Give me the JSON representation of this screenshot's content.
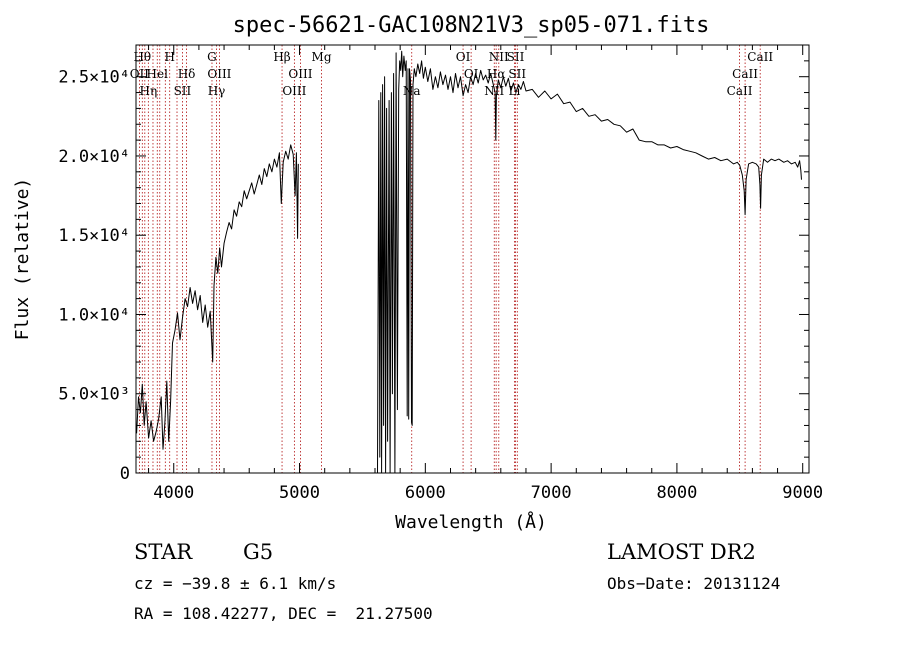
{
  "chart_data": {
    "type": "line",
    "title": "spec-56621-GAC108N21V3_sp05-071.fits",
    "xlabel": "Wavelength (Å)",
    "ylabel": "Flux (relative)",
    "xlim": [
      3700,
      9050
    ],
    "ylim": [
      0,
      27000
    ],
    "x_ticks": [
      4000,
      5000,
      6000,
      7000,
      8000,
      9000
    ],
    "y_ticks": [
      {
        "value": 0,
        "label": "0"
      },
      {
        "value": 5000,
        "label": "5.0×10³"
      },
      {
        "value": 10000,
        "label": "1.0×10⁴"
      },
      {
        "value": 15000,
        "label": "1.5×10⁴"
      },
      {
        "value": 20000,
        "label": "2.0×10⁴"
      },
      {
        "value": 25000,
        "label": "2.5×10⁴"
      }
    ],
    "line_color": "#000000",
    "marker_color": "#b01010",
    "series": [
      {
        "points": [
          [
            3705,
            2500
          ],
          [
            3720,
            4800
          ],
          [
            3735,
            3800
          ],
          [
            3750,
            5600
          ],
          [
            3765,
            3000
          ],
          [
            3780,
            4500
          ],
          [
            3800,
            2200
          ],
          [
            3820,
            3300
          ],
          [
            3840,
            2000
          ],
          [
            3860,
            2600
          ],
          [
            3880,
            3400
          ],
          [
            3900,
            4800
          ],
          [
            3915,
            1500
          ],
          [
            3930,
            3200
          ],
          [
            3945,
            5800
          ],
          [
            3960,
            2000
          ],
          [
            3975,
            4500
          ],
          [
            3990,
            8200
          ],
          [
            4010,
            9000
          ],
          [
            4030,
            10100
          ],
          [
            4050,
            8400
          ],
          [
            4070,
            9800
          ],
          [
            4090,
            11000
          ],
          [
            4110,
            10500
          ],
          [
            4130,
            11700
          ],
          [
            4150,
            10700
          ],
          [
            4170,
            11500
          ],
          [
            4190,
            10300
          ],
          [
            4210,
            11200
          ],
          [
            4230,
            9500
          ],
          [
            4250,
            10600
          ],
          [
            4270,
            9200
          ],
          [
            4290,
            10200
          ],
          [
            4310,
            7000
          ],
          [
            4320,
            11800
          ],
          [
            4335,
            13600
          ],
          [
            4350,
            12600
          ],
          [
            4365,
            14200
          ],
          [
            4380,
            13000
          ],
          [
            4400,
            14500
          ],
          [
            4420,
            15200
          ],
          [
            4440,
            15800
          ],
          [
            4460,
            15400
          ],
          [
            4480,
            16600
          ],
          [
            4500,
            16200
          ],
          [
            4520,
            17100
          ],
          [
            4540,
            16800
          ],
          [
            4560,
            17800
          ],
          [
            4580,
            17300
          ],
          [
            4600,
            17800
          ],
          [
            4620,
            18300
          ],
          [
            4640,
            17600
          ],
          [
            4660,
            18200
          ],
          [
            4680,
            18800
          ],
          [
            4700,
            18200
          ],
          [
            4720,
            19200
          ],
          [
            4740,
            18700
          ],
          [
            4760,
            19500
          ],
          [
            4780,
            19000
          ],
          [
            4800,
            19800
          ],
          [
            4820,
            19300
          ],
          [
            4840,
            20200
          ],
          [
            4855,
            17000
          ],
          [
            4870,
            19600
          ],
          [
            4890,
            20300
          ],
          [
            4910,
            19800
          ],
          [
            4930,
            20700
          ],
          [
            4950,
            20100
          ],
          [
            4965,
            17500
          ],
          [
            4975,
            20200
          ],
          [
            4985,
            14800
          ],
          [
            4990,
            19500
          ]
        ]
      },
      {
        "points": [
          [
            5620,
            0
          ],
          [
            5630,
            23500
          ],
          [
            5638,
            1000
          ],
          [
            5646,
            24000
          ],
          [
            5652,
            0
          ],
          [
            5660,
            24500
          ],
          [
            5668,
            3000
          ],
          [
            5676,
            25000
          ],
          [
            5684,
            0
          ],
          [
            5692,
            23000
          ],
          [
            5700,
            2000
          ],
          [
            5712,
            23500
          ],
          [
            5720,
            0
          ],
          [
            5730,
            24000
          ],
          [
            5738,
            5000
          ],
          [
            5748,
            25200
          ],
          [
            5758,
            0
          ],
          [
            5768,
            26500
          ],
          [
            5778,
            4000
          ],
          [
            5788,
            24200
          ],
          [
            5796,
            26000
          ],
          [
            5804,
            25400
          ],
          [
            5812,
            26600
          ],
          [
            5820,
            25000
          ],
          [
            5830,
            26300
          ],
          [
            5840,
            25400
          ],
          [
            5848,
            26000
          ],
          [
            5856,
            3600
          ],
          [
            5862,
            25500
          ],
          [
            5868,
            3400
          ],
          [
            5874,
            25500
          ],
          [
            5882,
            24800
          ],
          [
            5890,
            3200
          ],
          [
            5896,
            3000
          ],
          [
            5902,
            24500
          ],
          [
            5912,
            25500
          ],
          [
            5925,
            25000
          ],
          [
            5940,
            25800
          ],
          [
            5955,
            25200
          ],
          [
            5970,
            26000
          ],
          [
            5985,
            24900
          ],
          [
            6000,
            25600
          ],
          [
            6020,
            24700
          ],
          [
            6040,
            25500
          ],
          [
            6060,
            24200
          ],
          [
            6080,
            25000
          ],
          [
            6100,
            24300
          ],
          [
            6120,
            25300
          ],
          [
            6140,
            24500
          ],
          [
            6160,
            25100
          ],
          [
            6180,
            24200
          ],
          [
            6200,
            25000
          ],
          [
            6220,
            24000
          ],
          [
            6240,
            25200
          ],
          [
            6260,
            24300
          ],
          [
            6280,
            25000
          ],
          [
            6300,
            23800
          ],
          [
            6320,
            24500
          ],
          [
            6340,
            24000
          ],
          [
            6360,
            25000
          ],
          [
            6380,
            24500
          ],
          [
            6400,
            25200
          ],
          [
            6420,
            24600
          ],
          [
            6440,
            25400
          ],
          [
            6460,
            24800
          ],
          [
            6480,
            25100
          ],
          [
            6500,
            24600
          ],
          [
            6520,
            25200
          ],
          [
            6540,
            24500
          ],
          [
            6555,
            24000
          ],
          [
            6560,
            21000
          ],
          [
            6565,
            23800
          ],
          [
            6580,
            24800
          ],
          [
            6600,
            24300
          ],
          [
            6620,
            25000
          ],
          [
            6640,
            24400
          ],
          [
            6660,
            24900
          ],
          [
            6680,
            24100
          ],
          [
            6700,
            24600
          ],
          [
            6720,
            24000
          ],
          [
            6740,
            24500
          ],
          [
            6760,
            24200
          ],
          [
            6780,
            24700
          ],
          [
            6800,
            24100
          ],
          [
            6850,
            24200
          ],
          [
            6900,
            23700
          ],
          [
            6950,
            24100
          ],
          [
            7000,
            23600
          ],
          [
            7050,
            23900
          ],
          [
            7100,
            23300
          ],
          [
            7150,
            23400
          ],
          [
            7200,
            22800
          ],
          [
            7250,
            23000
          ],
          [
            7300,
            22500
          ],
          [
            7350,
            22600
          ],
          [
            7400,
            22200
          ],
          [
            7450,
            22300
          ],
          [
            7500,
            22000
          ],
          [
            7550,
            21900
          ],
          [
            7600,
            21500
          ],
          [
            7650,
            21700
          ],
          [
            7700,
            21000
          ],
          [
            7750,
            20900
          ],
          [
            7800,
            20900
          ],
          [
            7850,
            20700
          ],
          [
            7900,
            20700
          ],
          [
            7950,
            20500
          ],
          [
            8000,
            20600
          ],
          [
            8050,
            20400
          ],
          [
            8100,
            20300
          ],
          [
            8150,
            20200
          ],
          [
            8200,
            20000
          ],
          [
            8250,
            19800
          ],
          [
            8300,
            19900
          ],
          [
            8350,
            19700
          ],
          [
            8400,
            19800
          ],
          [
            8450,
            19500
          ],
          [
            8480,
            19600
          ],
          [
            8500,
            19400
          ],
          [
            8520,
            18800
          ],
          [
            8535,
            17800
          ],
          [
            8542,
            16300
          ],
          [
            8550,
            18500
          ],
          [
            8570,
            19500
          ],
          [
            8600,
            19600
          ],
          [
            8630,
            19500
          ],
          [
            8650,
            19300
          ],
          [
            8660,
            18200
          ],
          [
            8665,
            16700
          ],
          [
            8672,
            18800
          ],
          [
            8690,
            19800
          ],
          [
            8720,
            19600
          ],
          [
            8750,
            19800
          ],
          [
            8780,
            19700
          ],
          [
            8810,
            19800
          ],
          [
            8850,
            19600
          ],
          [
            8880,
            19700
          ],
          [
            8910,
            19500
          ],
          [
            8940,
            19600
          ],
          [
            8960,
            19300
          ],
          [
            8975,
            19700
          ],
          [
            8985,
            19100
          ],
          [
            8990,
            18500
          ]
        ]
      }
    ],
    "line_markers": [
      {
        "x": 3727,
        "label": "OII",
        "row": 2
      },
      {
        "x": 3750,
        "label": "Hθ",
        "row": 1
      },
      {
        "x": 3770,
        "label": "",
        "row": 0
      },
      {
        "x": 3798,
        "label": "Hη",
        "row": 3
      },
      {
        "x": 3835,
        "label": "",
        "row": 0
      },
      {
        "x": 3869,
        "label": "Hel",
        "row": 2
      },
      {
        "x": 3889,
        "label": "",
        "row": 0
      },
      {
        "x": 3933,
        "label": "",
        "row": 0
      },
      {
        "x": 3968,
        "label": "H",
        "row": 1
      },
      {
        "x": 4026,
        "label": "",
        "row": 0
      },
      {
        "x": 4069,
        "label": "SII",
        "row": 3
      },
      {
        "x": 4102,
        "label": "Hδ",
        "row": 2
      },
      {
        "x": 4304,
        "label": "G",
        "row": 1
      },
      {
        "x": 4340,
        "label": "Hγ",
        "row": 3
      },
      {
        "x": 4363,
        "label": "OIII",
        "row": 2
      },
      {
        "x": 4861,
        "label": "Hβ",
        "row": 1
      },
      {
        "x": 4959,
        "label": "OIII",
        "row": 3
      },
      {
        "x": 5007,
        "label": "OIII",
        "row": 2
      },
      {
        "x": 5175,
        "label": "Mg",
        "row": 1
      },
      {
        "x": 5892,
        "label": "Na",
        "row": 3
      },
      {
        "x": 6300,
        "label": "OI",
        "row": 1
      },
      {
        "x": 6364,
        "label": "OI",
        "row": 2
      },
      {
        "x": 6548,
        "label": "NII",
        "row": 3
      },
      {
        "x": 6563,
        "label": "Hα",
        "row": 2
      },
      {
        "x": 6584,
        "label": "NII",
        "row": 1
      },
      {
        "x": 6717,
        "label": "SII",
        "row": 1
      },
      {
        "x": 6731,
        "label": "SII",
        "row": 2
      },
      {
        "x": 6708,
        "label": "Li",
        "row": 3
      },
      {
        "x": 8498,
        "label": "CaII",
        "row": 3
      },
      {
        "x": 8542,
        "label": "CaII",
        "row": 2
      },
      {
        "x": 8662,
        "label": "CaII",
        "row": 1
      }
    ]
  },
  "info": {
    "class": "STAR",
    "subclass": "G5",
    "survey": "LAMOST DR2",
    "cz": "cz = −39.8 ± 6.1 km/s",
    "obs_date": "Obs−Date: 20131124",
    "coords": "RA = 108.42277, DEC =  21.27500"
  }
}
